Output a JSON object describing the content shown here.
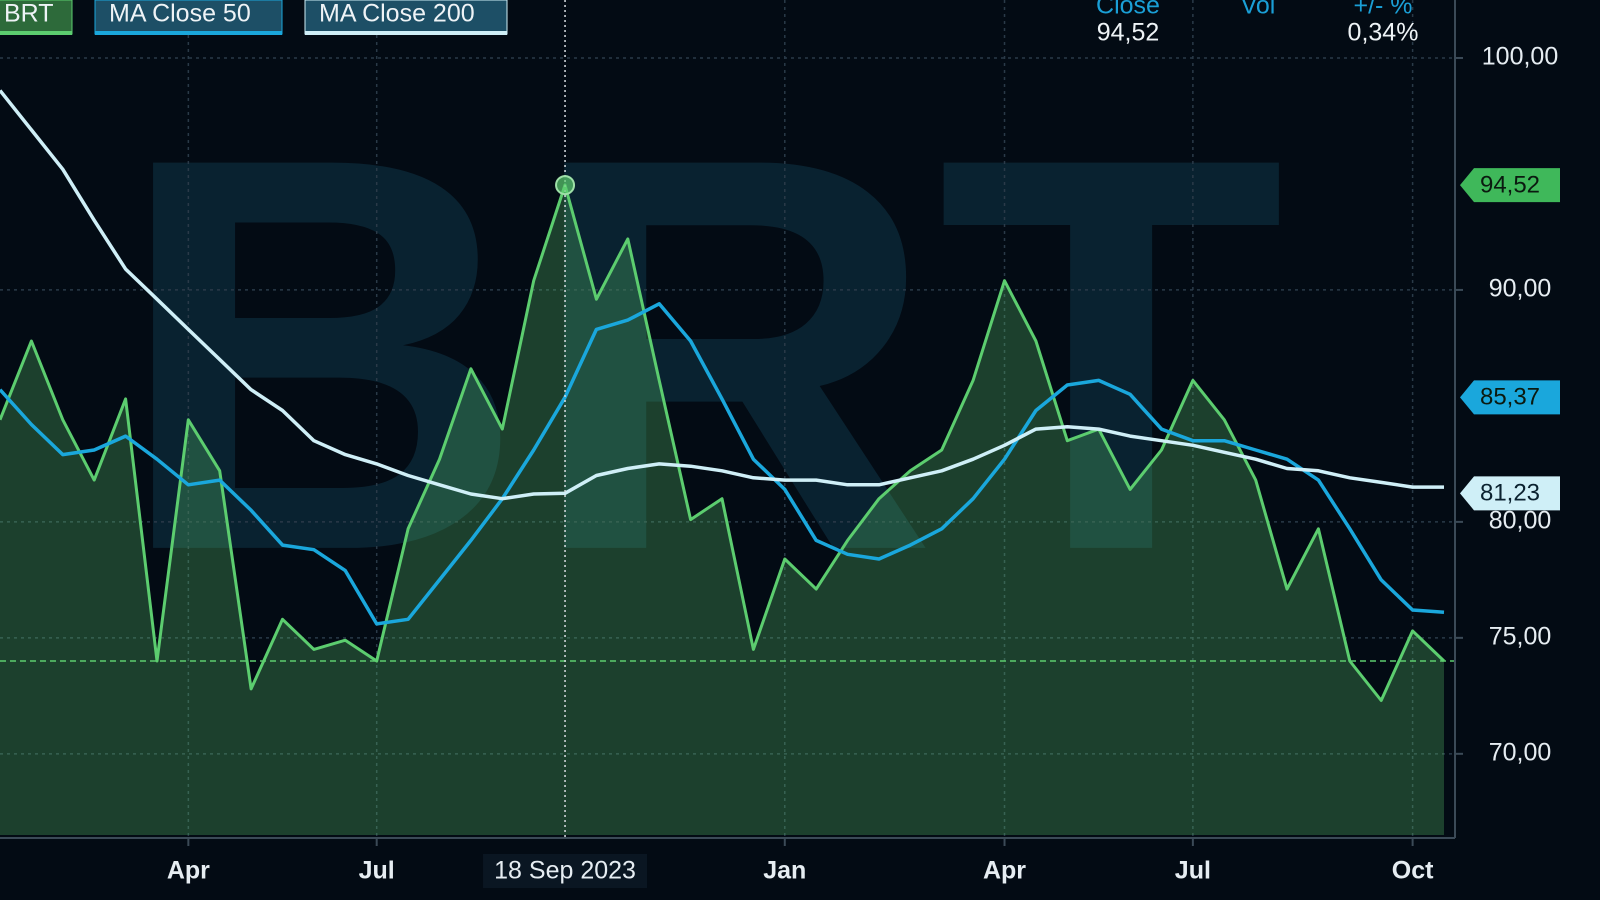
{
  "chart_data": {
    "type": "line",
    "watermark": "BRT",
    "categories": [
      null,
      null,
      null,
      null,
      null,
      null,
      "Apr",
      null,
      null,
      null,
      null,
      null,
      "Jul",
      null,
      null,
      null,
      null,
      null,
      "18 Sep 2023",
      null,
      null,
      null,
      null,
      null,
      null,
      "Jan",
      null,
      null,
      null,
      null,
      null,
      null,
      "Apr",
      null,
      null,
      null,
      null,
      null,
      "Jul",
      null,
      null,
      null,
      null,
      null,
      null,
      "Oct",
      null
    ],
    "series": [
      {
        "name": "BRT",
        "color": "#5ccd6f",
        "values": [
          84.4,
          87.8,
          84.4,
          81.8,
          85.3,
          74.0,
          84.4,
          82.2,
          72.8,
          75.8,
          74.5,
          74.9,
          74.0,
          79.7,
          82.7,
          86.6,
          84.0,
          90.4,
          94.52,
          89.6,
          92.2,
          86.1,
          80.1,
          81.0,
          74.5,
          78.4,
          77.1,
          79.2,
          81.0,
          82.2,
          83.1,
          86.1,
          90.4,
          87.8,
          83.5,
          84.0,
          81.4,
          83.1,
          86.1,
          84.4,
          81.8,
          77.1,
          79.7,
          74.0,
          72.3,
          75.3,
          74.0
        ]
      },
      {
        "name": "MA Close 50",
        "color": "#1aa7dc",
        "values": [
          85.7,
          84.2,
          82.9,
          83.1,
          83.7,
          82.7,
          81.6,
          81.8,
          80.5,
          79.0,
          78.8,
          77.9,
          75.6,
          75.8,
          77.5,
          79.2,
          81.0,
          83.1,
          85.37,
          88.3,
          88.7,
          89.4,
          87.8,
          85.3,
          82.7,
          81.4,
          79.2,
          78.6,
          78.4,
          79.0,
          79.7,
          81.0,
          82.7,
          84.8,
          85.9,
          86.1,
          85.5,
          84.0,
          83.5,
          83.5,
          83.1,
          82.7,
          81.8,
          79.7,
          77.5,
          76.2,
          76.1
        ]
      },
      {
        "name": "MA Close 200",
        "color": "#cfeff7",
        "values": [
          98.6,
          96.9,
          95.2,
          93.0,
          90.9,
          89.6,
          88.3,
          87.0,
          85.7,
          84.8,
          83.5,
          82.9,
          82.5,
          82.0,
          81.6,
          81.2,
          81.0,
          81.2,
          81.23,
          82.0,
          82.3,
          82.5,
          82.4,
          82.2,
          81.9,
          81.8,
          81.8,
          81.6,
          81.6,
          81.9,
          82.2,
          82.7,
          83.3,
          84.0,
          84.1,
          84.0,
          83.7,
          83.5,
          83.3,
          83.0,
          82.7,
          82.3,
          82.2,
          81.9,
          81.7,
          81.5,
          81.5
        ]
      }
    ],
    "ylim": [
      66.5,
      102.5
    ],
    "yticks": [
      {
        "value": 70,
        "label": "70,00"
      },
      {
        "value": 75,
        "label": "75,00"
      },
      {
        "value": 80,
        "label": "80,00"
      },
      {
        "value": 90,
        "label": "90,00"
      },
      {
        "value": 100,
        "label": "100,00"
      }
    ],
    "grid": true,
    "price_tags": [
      {
        "value": 94.52,
        "label": "94,52",
        "color": "#3fb85a"
      },
      {
        "value": 85.37,
        "label": "85,37",
        "color": "#1aa7dc"
      },
      {
        "value": 81.23,
        "label": "81,23",
        "color": "#cfeff7"
      }
    ],
    "readout": [
      {
        "name": "Close",
        "value": 94.52,
        "label": "94,52"
      },
      {
        "name": "Vol"
      },
      {
        "name": "+/- %",
        "value": 0.34,
        "label": "0,34%"
      }
    ]
  }
}
